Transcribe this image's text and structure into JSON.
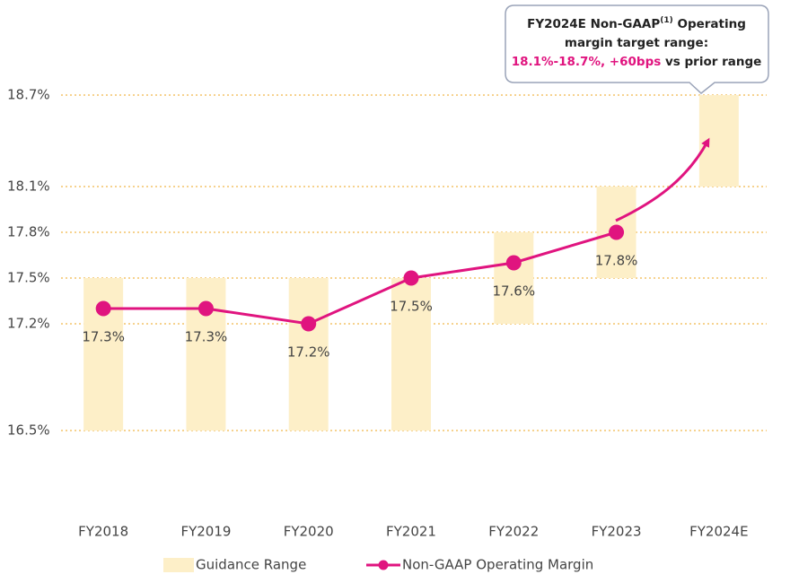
{
  "chart_data": {
    "type": "line",
    "categories": [
      "FY2018",
      "FY2019",
      "FY2020",
      "FY2021",
      "FY2022",
      "FY2023",
      "FY2024E"
    ],
    "series": [
      {
        "name": "Guidance Range",
        "color": "#fdefc8",
        "low": [
          16.5,
          16.5,
          16.5,
          16.5,
          17.2,
          17.5,
          18.1
        ],
        "high": [
          17.5,
          17.5,
          17.5,
          17.5,
          17.8,
          18.1,
          18.7
        ]
      },
      {
        "name": "Non-GAAP Operating Margin",
        "color": "#e0147f",
        "values": [
          17.3,
          17.3,
          17.2,
          17.5,
          17.6,
          17.8,
          null
        ],
        "value_labels": [
          "17.3%",
          "17.3%",
          "17.2%",
          "17.5%",
          "17.6%",
          "17.8%",
          null
        ]
      }
    ],
    "ylim": [
      16.0,
      18.8
    ],
    "yticks": [
      {
        "value": 16.5,
        "label": "16.5%"
      },
      {
        "value": 17.2,
        "label": "17.2%"
      },
      {
        "value": 17.5,
        "label": "17.5%"
      },
      {
        "value": 17.8,
        "label": "17.8%"
      },
      {
        "value": 18.1,
        "label": "18.1%"
      },
      {
        "value": 18.7,
        "label": "18.7%"
      }
    ],
    "grid": true,
    "annotation": {
      "line1": "FY2024E Non-GAAP",
      "sup": "(1)",
      "line1b": " Operating",
      "line2": "margin target range:",
      "line3a": "18.1%-18.7%, +60bps",
      "line3b": " vs prior range"
    }
  }
}
